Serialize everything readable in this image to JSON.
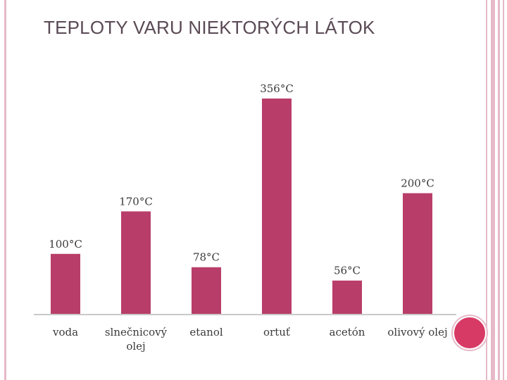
{
  "slide": {
    "title": "TEPLOTY VARU NIEKTORÝCH LÁTOK"
  },
  "colors": {
    "bar": "#b83d69",
    "axis": "#c9c9c9",
    "accent": "#d83a66",
    "rule": "#e6b9c8"
  },
  "chart_data": {
    "type": "bar",
    "categories": [
      "voda",
      "slnečnicový olej",
      "etanol",
      "ortuť",
      "acetón",
      "olivový olej"
    ],
    "values": [
      100,
      170,
      78,
      356,
      56,
      200
    ],
    "value_labels": [
      "100°C",
      "170°C",
      "78°C",
      "356°C",
      "56°C",
      "200°C"
    ],
    "ylim": [
      0,
      356
    ],
    "grid": false,
    "legend": "none"
  }
}
